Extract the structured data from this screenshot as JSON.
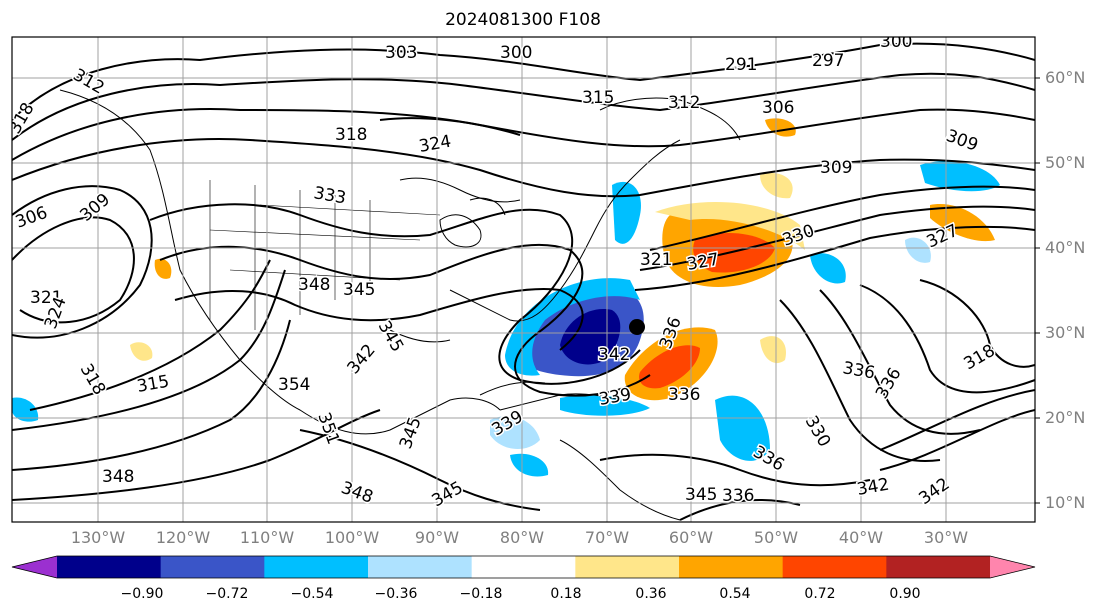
{
  "title": "2024081300 F108",
  "latitude_labels": [
    "60°N",
    "50°N",
    "40°N",
    "30°N",
    "20°N",
    "10°N"
  ],
  "longitude_labels": [
    "130°W",
    "120°W",
    "110°W",
    "100°W",
    "90°W",
    "80°W",
    "70°W",
    "60°W",
    "50°W",
    "40°W",
    "30°W"
  ],
  "colorbar": {
    "ticks": [
      "−0.90",
      "−0.72",
      "−0.54",
      "−0.36",
      "−0.18",
      "0.18",
      "0.36",
      "0.54",
      "0.72",
      "0.90"
    ],
    "colors": [
      "#9b30d0",
      "#00008b",
      "#3a55c8",
      "#00bfff",
      "#aee2ff",
      "#ffffff",
      "#ffe68a",
      "#ffa500",
      "#ff4500",
      "#b22222",
      "#ff85ad"
    ]
  },
  "contour_labels": [
    "303",
    "300",
    "291",
    "297",
    "300",
    "312",
    "318",
    "315",
    "312",
    "306",
    "309",
    "318",
    "324",
    "306",
    "309",
    "333",
    "309",
    "330",
    "327",
    "321",
    "327",
    "321",
    "324",
    "348",
    "345",
    "345",
    "336",
    "342",
    "318",
    "315",
    "354",
    "351",
    "342",
    "336",
    "336",
    "318",
    "330",
    "336",
    "336",
    "342",
    "339",
    "345",
    "339",
    "348",
    "348",
    "345",
    "342",
    "345",
    "336"
  ],
  "colors": {
    "contour": "#000000",
    "grid": "#a0a0a0",
    "coast": "#000000",
    "axis_label": "#808080"
  },
  "marker": "black-dot"
}
